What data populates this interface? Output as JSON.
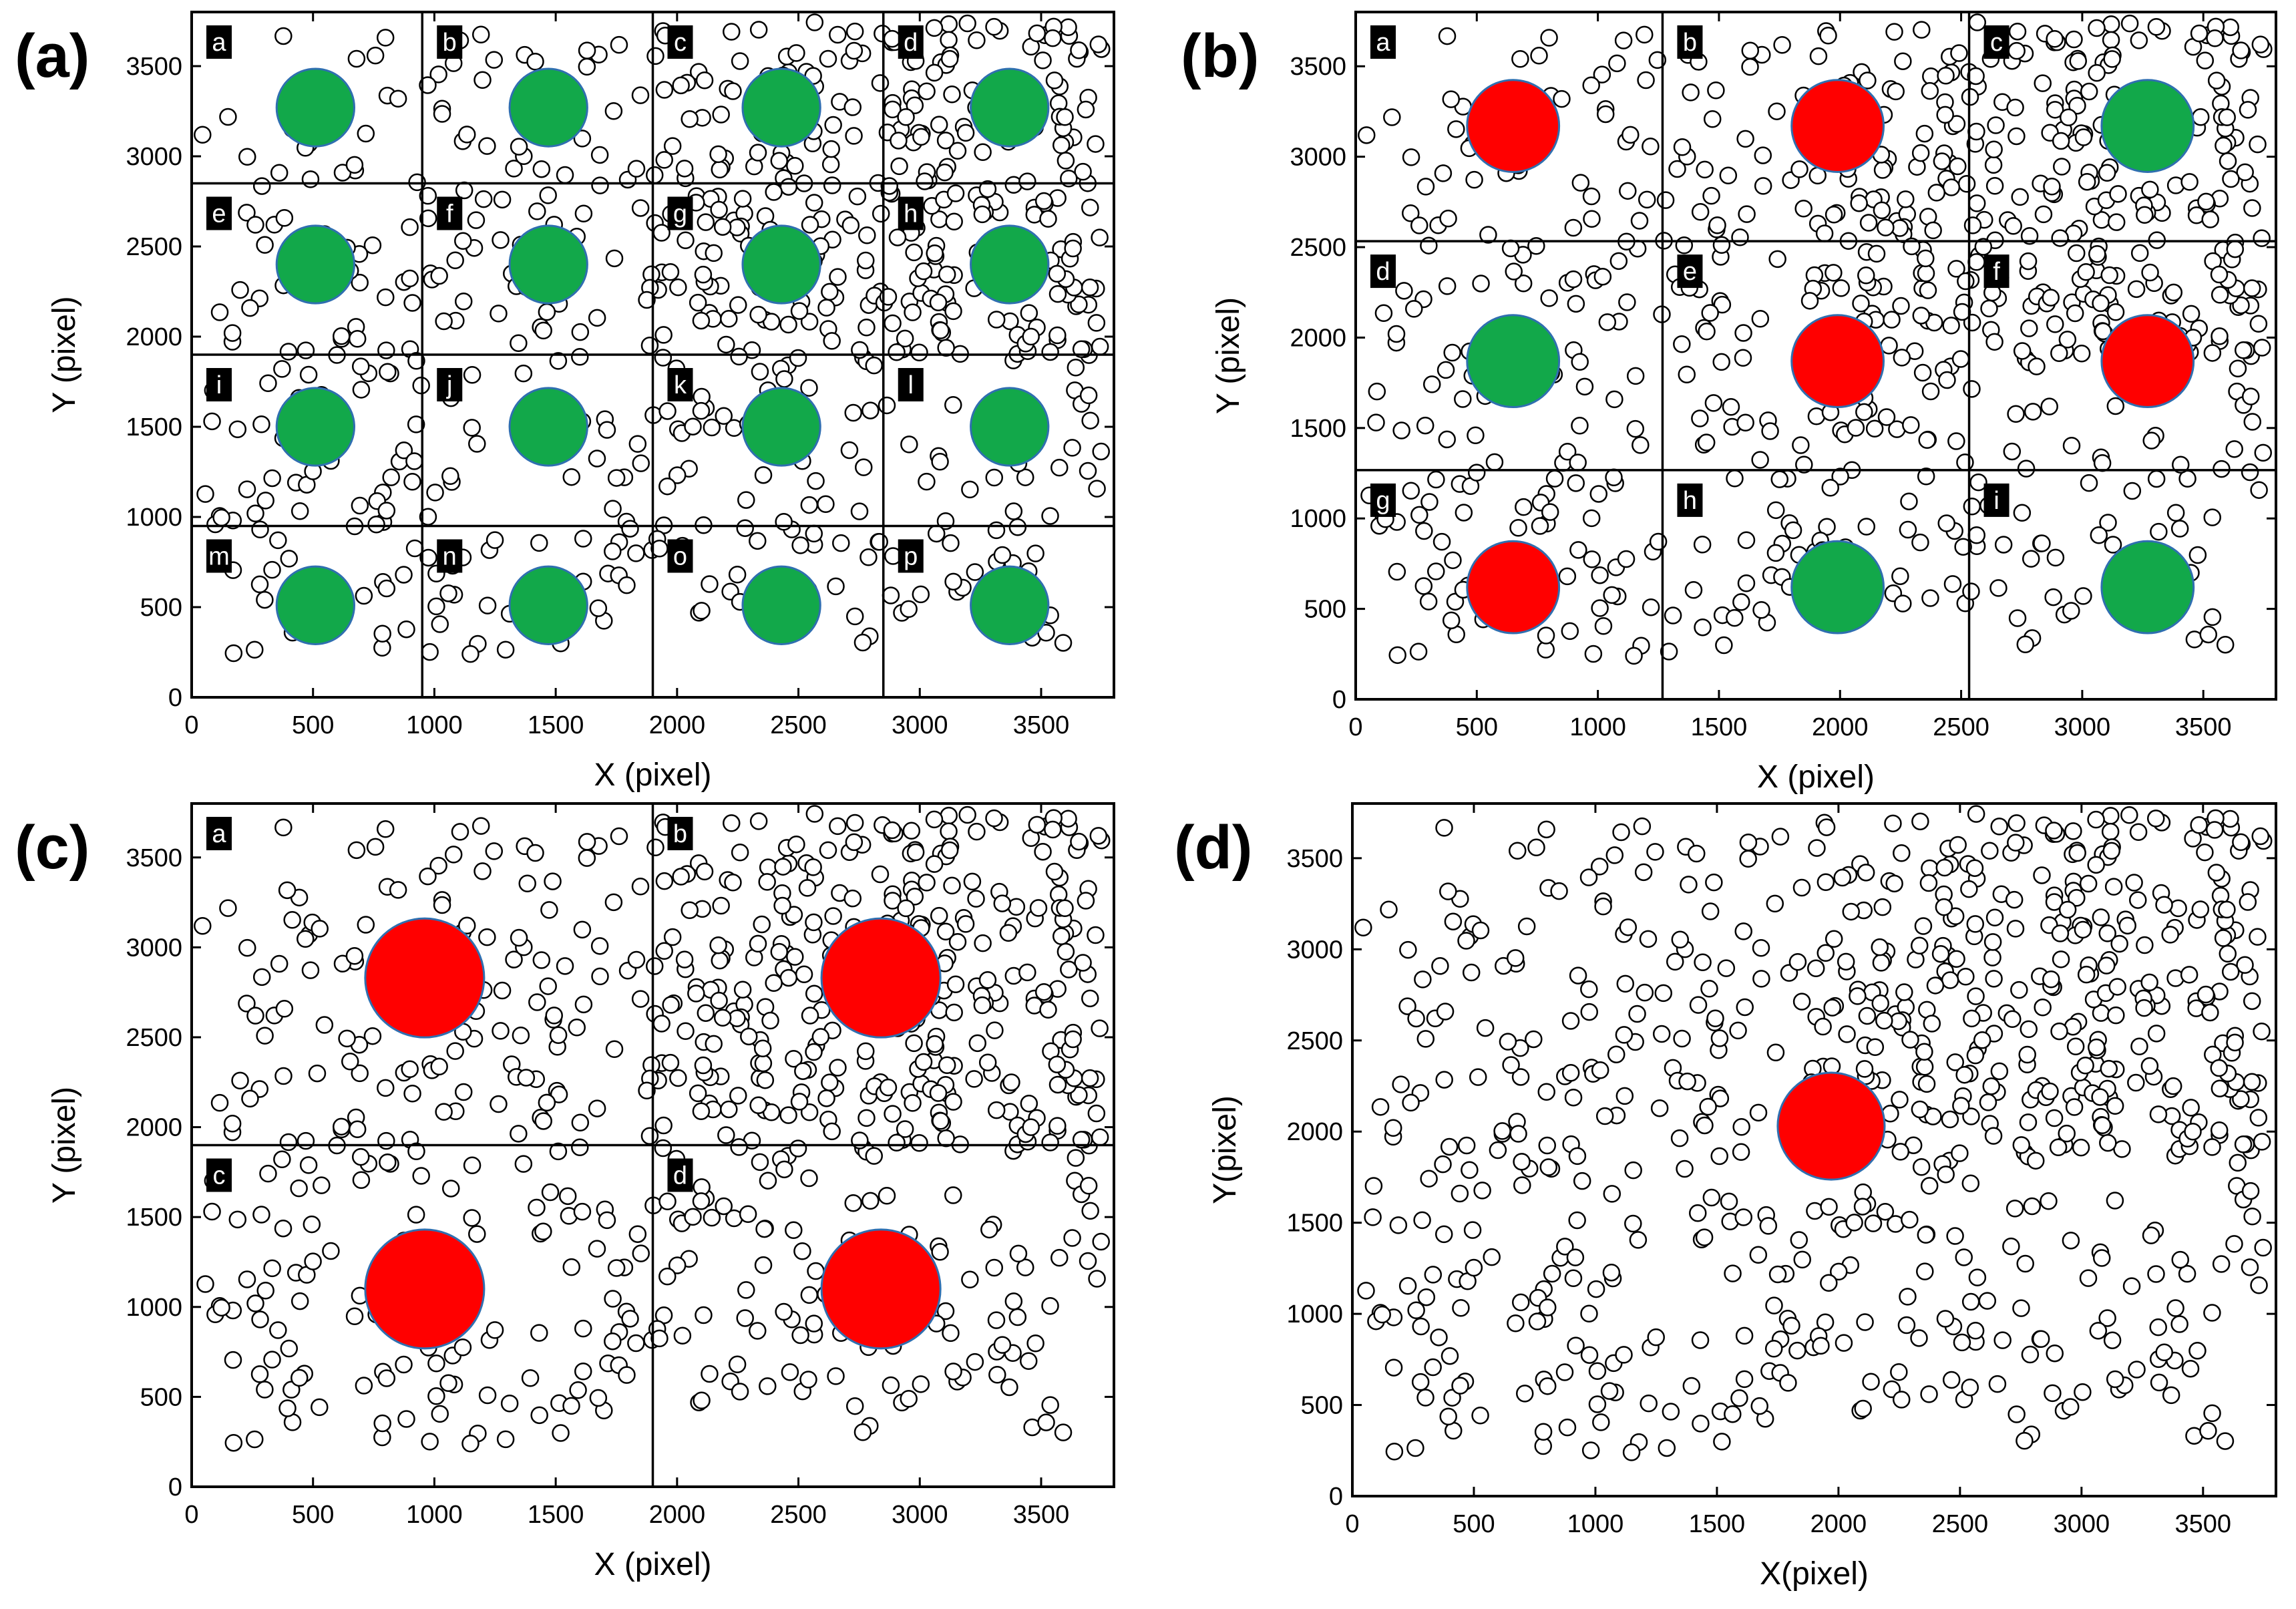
{
  "figure": {
    "colors": {
      "pass": "#12a84a",
      "fail": "#ff0000",
      "circle_edge": "#2f6fb0",
      "region_label_bg": "#000000",
      "region_label_text": "#ffffff",
      "point_edge": "#000000",
      "point_fill": "#ffffff"
    }
  },
  "chart_data": [
    {
      "id": "a",
      "panel_label": "(a)",
      "type": "scatter",
      "xlabel": "X (pixel)",
      "ylabel": "Y (pixel)",
      "xlim": [
        0,
        3800
      ],
      "ylim": [
        0,
        3800
      ],
      "xticks": [
        0,
        500,
        1000,
        1500,
        2000,
        2500,
        3000,
        3500
      ],
      "yticks": [
        0,
        500,
        1000,
        1500,
        2000,
        2500,
        3000,
        3500
      ],
      "grid_x": [
        950,
        1900,
        2850
      ],
      "grid_y": [
        950,
        1900,
        2850
      ],
      "regions": [
        {
          "label": "a",
          "x": 0,
          "y": 3800
        },
        {
          "label": "b",
          "x": 950,
          "y": 3800
        },
        {
          "label": "c",
          "x": 1900,
          "y": 3800
        },
        {
          "label": "d",
          "x": 2850,
          "y": 3800
        },
        {
          "label": "e",
          "x": 0,
          "y": 2850
        },
        {
          "label": "f",
          "x": 950,
          "y": 2850
        },
        {
          "label": "g",
          "x": 1900,
          "y": 2850
        },
        {
          "label": "h",
          "x": 2850,
          "y": 2850
        },
        {
          "label": "i",
          "x": 0,
          "y": 1900
        },
        {
          "label": "j",
          "x": 950,
          "y": 1900
        },
        {
          "label": "k",
          "x": 1900,
          "y": 1900
        },
        {
          "label": "l",
          "x": 2850,
          "y": 1900
        },
        {
          "label": "m",
          "x": 0,
          "y": 950
        },
        {
          "label": "n",
          "x": 950,
          "y": 950
        },
        {
          "label": "o",
          "x": 1900,
          "y": 950
        },
        {
          "label": "p",
          "x": 2850,
          "y": 950
        }
      ],
      "markers": [
        {
          "x": 510,
          "y": 3270,
          "r": 160,
          "status": "pass"
        },
        {
          "x": 1470,
          "y": 3270,
          "r": 160,
          "status": "pass"
        },
        {
          "x": 2430,
          "y": 3270,
          "r": 160,
          "status": "pass"
        },
        {
          "x": 3370,
          "y": 3270,
          "r": 160,
          "status": "pass"
        },
        {
          "x": 510,
          "y": 2400,
          "r": 160,
          "status": "pass"
        },
        {
          "x": 1470,
          "y": 2400,
          "r": 160,
          "status": "pass"
        },
        {
          "x": 2430,
          "y": 2400,
          "r": 160,
          "status": "pass"
        },
        {
          "x": 3370,
          "y": 2400,
          "r": 160,
          "status": "pass"
        },
        {
          "x": 510,
          "y": 1500,
          "r": 160,
          "status": "pass"
        },
        {
          "x": 1470,
          "y": 1500,
          "r": 160,
          "status": "pass"
        },
        {
          "x": 2430,
          "y": 1500,
          "r": 160,
          "status": "pass"
        },
        {
          "x": 3370,
          "y": 1500,
          "r": 160,
          "status": "pass"
        },
        {
          "x": 510,
          "y": 510,
          "r": 160,
          "status": "pass"
        },
        {
          "x": 1470,
          "y": 510,
          "r": 160,
          "status": "pass"
        },
        {
          "x": 2430,
          "y": 510,
          "r": 160,
          "status": "pass"
        },
        {
          "x": 3370,
          "y": 510,
          "r": 160,
          "status": "pass"
        }
      ]
    },
    {
      "id": "b",
      "panel_label": "(b)",
      "type": "scatter",
      "xlabel": "X (pixel)",
      "ylabel": "Y (pixel)",
      "xlim": [
        0,
        3800
      ],
      "ylim": [
        0,
        3800
      ],
      "xticks": [
        0,
        500,
        1000,
        1500,
        2000,
        2500,
        3000,
        3500
      ],
      "yticks": [
        0,
        500,
        1000,
        1500,
        2000,
        2500,
        3000,
        3500
      ],
      "grid_x": [
        1267,
        2533
      ],
      "grid_y": [
        1267,
        2533
      ],
      "regions": [
        {
          "label": "a",
          "x": 0,
          "y": 3800
        },
        {
          "label": "b",
          "x": 1267,
          "y": 3800
        },
        {
          "label": "c",
          "x": 2533,
          "y": 3800
        },
        {
          "label": "d",
          "x": 0,
          "y": 2533
        },
        {
          "label": "e",
          "x": 1267,
          "y": 2533
        },
        {
          "label": "f",
          "x": 2533,
          "y": 2533
        },
        {
          "label": "g",
          "x": 0,
          "y": 1267
        },
        {
          "label": "h",
          "x": 1267,
          "y": 1267
        },
        {
          "label": "i",
          "x": 2533,
          "y": 1267
        }
      ],
      "markers": [
        {
          "x": 650,
          "y": 3170,
          "r": 190,
          "status": "fail"
        },
        {
          "x": 1990,
          "y": 3170,
          "r": 190,
          "status": "fail"
        },
        {
          "x": 3270,
          "y": 3170,
          "r": 190,
          "status": "pass"
        },
        {
          "x": 650,
          "y": 1870,
          "r": 190,
          "status": "pass"
        },
        {
          "x": 1990,
          "y": 1870,
          "r": 190,
          "status": "fail"
        },
        {
          "x": 3270,
          "y": 1870,
          "r": 190,
          "status": "fail"
        },
        {
          "x": 650,
          "y": 620,
          "r": 190,
          "status": "fail"
        },
        {
          "x": 1990,
          "y": 620,
          "r": 190,
          "status": "pass"
        },
        {
          "x": 3270,
          "y": 620,
          "r": 190,
          "status": "pass"
        }
      ]
    },
    {
      "id": "c",
      "panel_label": "(c)",
      "type": "scatter",
      "xlabel": "X (pixel)",
      "ylabel": "Y (pixel)",
      "xlim": [
        0,
        3800
      ],
      "ylim": [
        0,
        3800
      ],
      "xticks": [
        0,
        500,
        1000,
        1500,
        2000,
        2500,
        3000,
        3500
      ],
      "yticks": [
        0,
        500,
        1000,
        1500,
        2000,
        2500,
        3000,
        3500
      ],
      "grid_x": [
        1900
      ],
      "grid_y": [
        1900
      ],
      "regions": [
        {
          "label": "a",
          "x": 0,
          "y": 3800
        },
        {
          "label": "b",
          "x": 1900,
          "y": 3800
        },
        {
          "label": "c",
          "x": 0,
          "y": 1900
        },
        {
          "label": "d",
          "x": 1900,
          "y": 1900
        }
      ],
      "markers": [
        {
          "x": 960,
          "y": 2830,
          "r": 245,
          "status": "fail"
        },
        {
          "x": 2840,
          "y": 2830,
          "r": 245,
          "status": "fail"
        },
        {
          "x": 960,
          "y": 1100,
          "r": 245,
          "status": "fail"
        },
        {
          "x": 2840,
          "y": 1100,
          "r": 245,
          "status": "fail"
        }
      ]
    },
    {
      "id": "d",
      "panel_label": "(d)",
      "type": "scatter",
      "xlabel": "X(pixel)",
      "ylabel": "Y(pixel)",
      "xlim": [
        0,
        3800
      ],
      "ylim": [
        0,
        3800
      ],
      "xticks": [
        0,
        500,
        1000,
        1500,
        2000,
        2500,
        3000,
        3500
      ],
      "yticks": [
        0,
        500,
        1000,
        1500,
        2000,
        2500,
        3000,
        3500
      ],
      "grid_x": [],
      "grid_y": [],
      "regions": [],
      "markers": [
        {
          "x": 1970,
          "y": 2030,
          "r": 220,
          "status": "fail"
        }
      ]
    }
  ]
}
